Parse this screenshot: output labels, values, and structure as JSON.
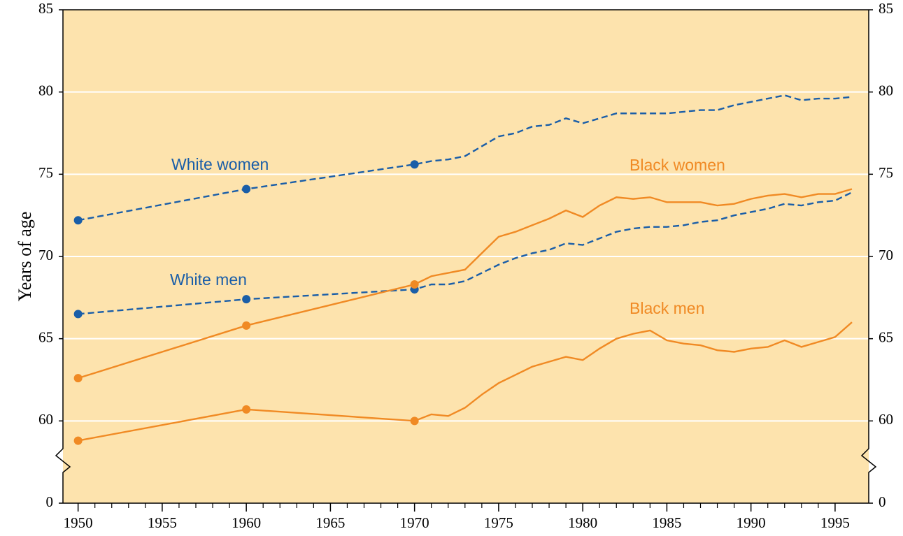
{
  "chart_data": {
    "type": "line",
    "ylabel": "Years of age",
    "x": [
      1950,
      1960,
      1970,
      1971,
      1972,
      1973,
      1974,
      1975,
      1976,
      1977,
      1978,
      1979,
      1980,
      1981,
      1982,
      1983,
      1984,
      1985,
      1986,
      1987,
      1988,
      1989,
      1990,
      1991,
      1992,
      1993,
      1994,
      1995,
      1996
    ],
    "series": [
      {
        "name": "White women",
        "color": "#1a5ea8",
        "dashed": true,
        "values": [
          72.2,
          74.1,
          75.6,
          75.8,
          75.9,
          76.1,
          76.7,
          77.3,
          77.5,
          77.9,
          78.0,
          78.4,
          78.1,
          78.4,
          78.7,
          78.7,
          78.7,
          78.7,
          78.8,
          78.9,
          78.9,
          79.2,
          79.4,
          79.6,
          79.8,
          79.5,
          79.6,
          79.6,
          79.7
        ]
      },
      {
        "name": "White men",
        "color": "#1a5ea8",
        "dashed": true,
        "values": [
          66.5,
          67.4,
          68.0,
          68.3,
          68.3,
          68.5,
          69.0,
          69.5,
          69.9,
          70.2,
          70.4,
          70.8,
          70.7,
          71.1,
          71.5,
          71.7,
          71.8,
          71.8,
          71.9,
          72.1,
          72.2,
          72.5,
          72.7,
          72.9,
          73.2,
          73.1,
          73.3,
          73.4,
          73.9
        ]
      },
      {
        "name": "Black women",
        "color": "#f08a24",
        "dashed": false,
        "values": [
          62.6,
          65.8,
          68.3,
          68.8,
          69.0,
          69.2,
          70.2,
          71.2,
          71.5,
          71.9,
          72.3,
          72.8,
          72.4,
          73.1,
          73.6,
          73.5,
          73.6,
          73.3,
          73.3,
          73.3,
          73.1,
          73.2,
          73.5,
          73.7,
          73.8,
          73.6,
          73.8,
          73.8,
          74.1
        ]
      },
      {
        "name": "Black men",
        "color": "#f08a24",
        "dashed": false,
        "values": [
          58.8,
          60.7,
          60.0,
          60.4,
          60.3,
          60.8,
          61.6,
          62.3,
          62.8,
          63.3,
          63.6,
          63.9,
          63.7,
          64.4,
          65.0,
          65.3,
          65.5,
          64.9,
          64.7,
          64.6,
          64.3,
          64.2,
          64.4,
          64.5,
          64.9,
          64.5,
          64.8,
          65.1,
          66.0
        ]
      }
    ],
    "marker_x": [
      1950,
      1960,
      1970
    ],
    "xlim": [
      1949.1,
      1997
    ],
    "xticks": [
      1950,
      1955,
      1960,
      1965,
      1970,
      1975,
      1980,
      1985,
      1990,
      1995
    ],
    "ylim": [
      55,
      85
    ],
    "yticks": [
      0,
      60,
      65,
      70,
      75,
      80,
      85
    ],
    "axis_break": true,
    "grid": true,
    "background": "#fde3ad"
  }
}
